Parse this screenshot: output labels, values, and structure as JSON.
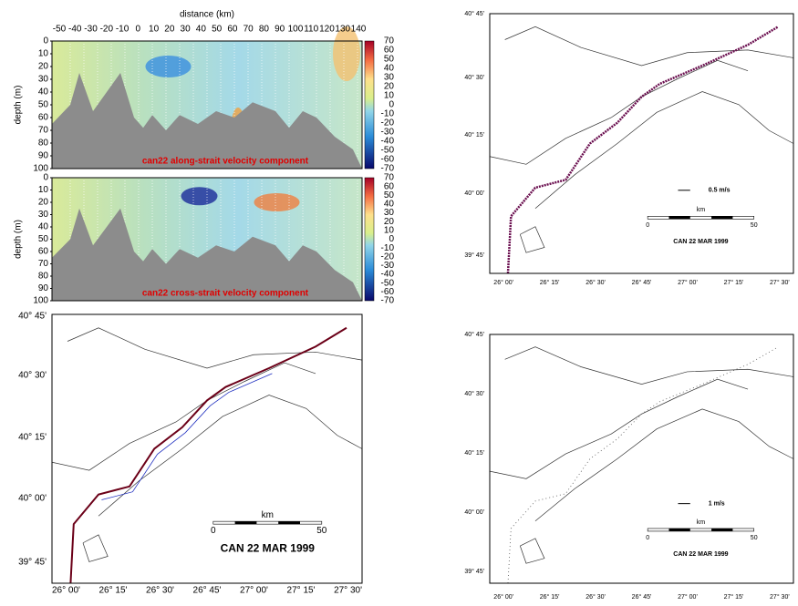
{
  "sections": [
    {
      "title": "can22 along-strait velocity component",
      "x_axis_label": "distance (km)",
      "y_axis_label": "depth (m)",
      "x_ticks": [
        -50,
        -40,
        -30,
        -20,
        -10,
        0,
        10,
        20,
        30,
        40,
        50,
        60,
        70,
        80,
        90,
        100,
        110,
        120,
        130,
        140
      ],
      "y_ticks": [
        0,
        10,
        20,
        30,
        40,
        50,
        60,
        70,
        80,
        90,
        100
      ],
      "colorbar_ticks": [
        70,
        60,
        50,
        40,
        30,
        20,
        10,
        0,
        -10,
        -20,
        -30,
        -40,
        -50,
        -60,
        -70
      ]
    },
    {
      "title": "can22 cross-strait velocity component",
      "y_axis_label": "depth (m)",
      "y_ticks": [
        0,
        10,
        20,
        30,
        40,
        50,
        60,
        70,
        80,
        90,
        100
      ],
      "colorbar_ticks": [
        70,
        60,
        50,
        40,
        30,
        20,
        10,
        0,
        -10,
        -20,
        -30,
        -40,
        -50,
        -60,
        -70
      ]
    }
  ],
  "maps": [
    {
      "caption": "CAN 22 MAR 1999",
      "lat_labels": [
        "40° 45'",
        "40° 30'",
        "40° 15'",
        "40° 00'",
        "39° 45'"
      ],
      "lon_labels": [
        "26° 00'",
        "26° 15'",
        "26° 30'",
        "26° 45'",
        "27° 00'",
        "27° 15'",
        "27° 30'"
      ],
      "scale_label": "km",
      "scale_ticks": [
        "0",
        "50"
      ]
    },
    {
      "caption": "CAN 22 MAR 1999",
      "lat_labels": [
        "40° 45'",
        "40° 30'",
        "40° 15'",
        "40° 00'",
        "39° 45'"
      ],
      "lon_labels": [
        "26° 00'",
        "26° 15'",
        "26° 30'",
        "26° 45'",
        "27° 00'",
        "27° 15'",
        "27° 30'"
      ],
      "scale_label": "km",
      "scale_ticks": [
        "0",
        "50"
      ],
      "vector_label": "0.5 m/s"
    },
    {
      "caption": "CAN 22 MAR 1999",
      "lat_labels": [
        "40° 45'",
        "40° 30'",
        "40° 15'",
        "40° 00'",
        "39° 45'"
      ],
      "lon_labels": [
        "26° 00'",
        "26° 15'",
        "26° 30'",
        "26° 45'",
        "27° 00'",
        "27° 15'",
        "27° 30'"
      ],
      "scale_label": "km",
      "scale_ticks": [
        "0",
        "50"
      ],
      "vector_label": "1 m/s"
    }
  ]
}
